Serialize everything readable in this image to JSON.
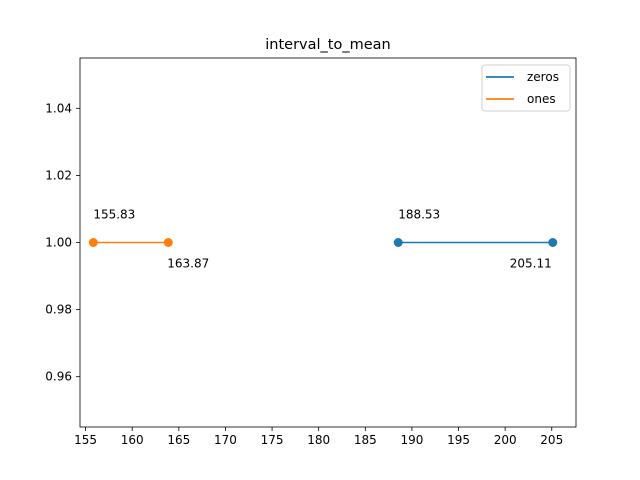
{
  "chart_data": {
    "type": "line",
    "title": "interval_to_mean",
    "xlabel": "",
    "ylabel": "",
    "xlim": [
      154.4,
      207.6
    ],
    "ylim": [
      0.945,
      1.055
    ],
    "xticks": [
      155,
      160,
      165,
      170,
      175,
      180,
      185,
      190,
      195,
      200,
      205
    ],
    "yticks": [
      0.96,
      0.98,
      1.0,
      1.02,
      1.04
    ],
    "ytick_labels": [
      "0.96",
      "0.98",
      "1.00",
      "1.02",
      "1.04"
    ],
    "grid": false,
    "legend_position": "top-right",
    "series": [
      {
        "name": "zeros",
        "color": "#1f77b4",
        "x": [
          188.53,
          205.11
        ],
        "y": [
          1.0,
          1.0
        ],
        "labels": [
          "188.53",
          "205.11"
        ],
        "label_positions": [
          "above",
          "below"
        ]
      },
      {
        "name": "ones",
        "color": "#ff7f0e",
        "x": [
          155.83,
          163.87
        ],
        "y": [
          1.0,
          1.0
        ],
        "labels": [
          "155.83",
          "163.87"
        ],
        "label_positions": [
          "above",
          "below"
        ]
      }
    ]
  }
}
